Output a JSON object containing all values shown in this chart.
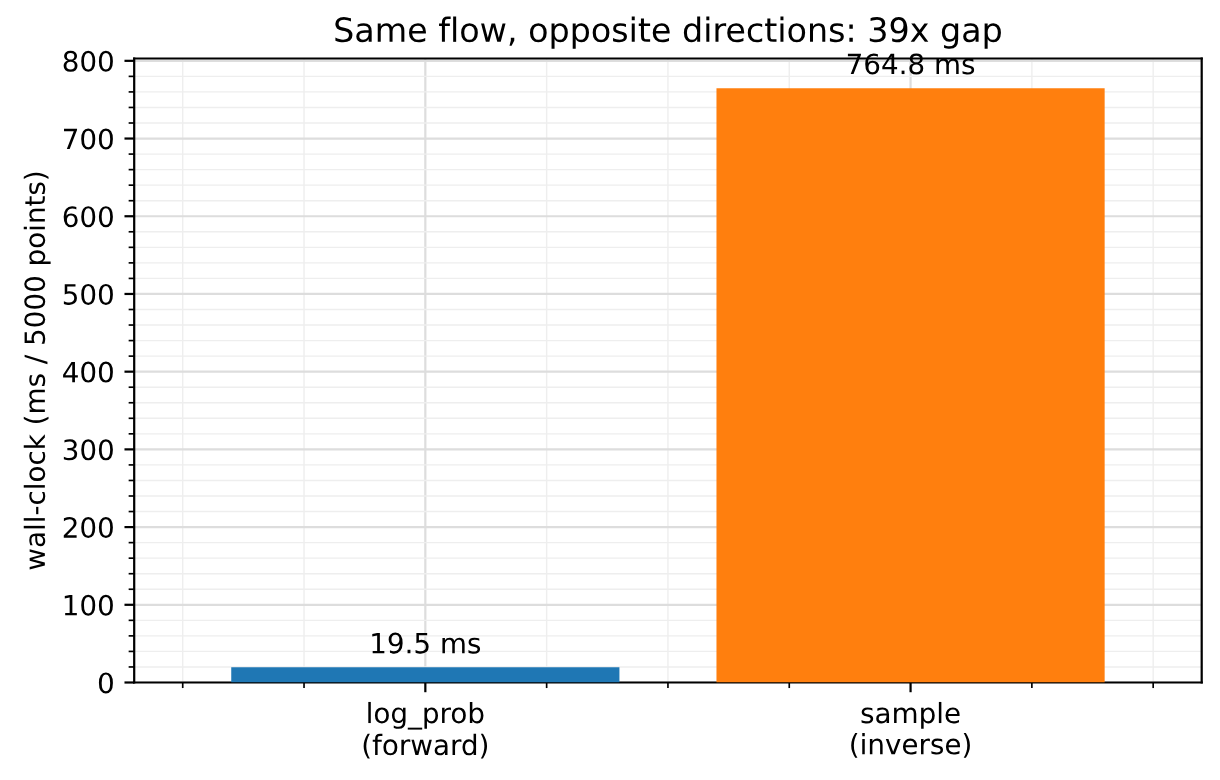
{
  "chart_data": {
    "type": "bar",
    "title": "Same flow, opposite directions: 39x gap",
    "ylabel": "wall-clock (ms / 5000 points)",
    "categories": [
      "log_prob\n(forward)",
      "sample\n(inverse)"
    ],
    "values": [
      19.5,
      764.8
    ],
    "colors": [
      "#1f77b4",
      "#ff7f0e"
    ],
    "value_labels": [
      "19.5 ms",
      "764.8 ms"
    ],
    "ylim": [
      0,
      803
    ],
    "yticks": [
      0,
      100,
      200,
      300,
      400,
      500,
      600,
      700,
      800
    ],
    "grid": true
  }
}
